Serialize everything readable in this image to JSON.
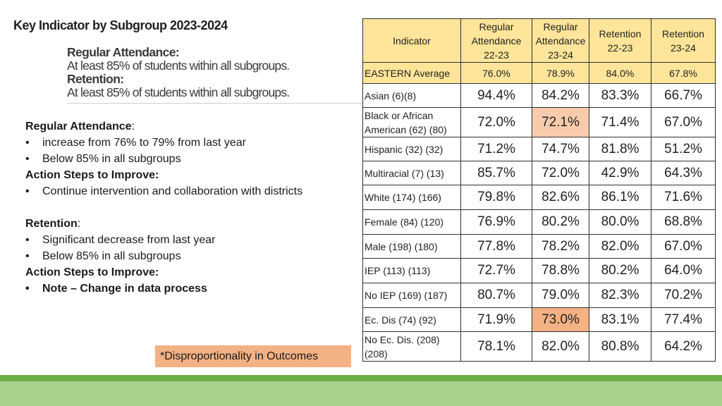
{
  "title": "Key Indicator by Subgroup 2023-2024",
  "criteria": {
    "attendance_heading": "Regular Attendance:",
    "attendance_text": "At least 85% of students within all subgroups.",
    "retention_heading": "Retention:",
    "retention_text": "At least 85% of students within all subgroups."
  },
  "notes": {
    "attendance_label": "Regular Attendance",
    "colon": ":",
    "attendance_bullets": [
      "increase from 76% to 79% from last year",
      "Below 85% in all subgroups"
    ],
    "action_label_1": "Action Steps to Improve:",
    "action_bullets_1": [
      "Continue intervention and collaboration with districts"
    ],
    "retention_label": "Retention",
    "retention_bullets": [
      "Significant decrease from last year",
      "Below 85% in all subgroups"
    ],
    "action_label_2": "Action Steps to Improve:",
    "action_bullets_2": [
      "Note – Change in data process"
    ]
  },
  "disproportionality": "*Disproportionality in Outcomes",
  "table": {
    "headers": {
      "indicator": "Indicator",
      "ra2223": [
        "Regular",
        "Attendance",
        "22-23"
      ],
      "ra2324": [
        "Regular",
        "Attendance",
        "23-24"
      ],
      "ret2223": [
        "Retention",
        "22-23"
      ],
      "ret2324": [
        "Retention",
        "23-24"
      ]
    },
    "average": {
      "label": "EASTERN Average",
      "values": [
        "76.0%",
        "78.9%",
        "84.0%",
        "67.8%"
      ]
    },
    "rows": [
      {
        "label": "Asian (6)(8)",
        "values": [
          "94.4%",
          "84.2%",
          "83.3%",
          "66.7%"
        ]
      },
      {
        "label": "Black or African American (62) (80)",
        "values": [
          "72.0%",
          "72.1%",
          "71.4%",
          "67.0%"
        ]
      },
      {
        "label": "Hispanic (32) (32)",
        "values": [
          "71.2%",
          "74.7%",
          "81.8%",
          "51.2%"
        ]
      },
      {
        "label": "Multiracial (7) (13)",
        "values": [
          "85.7%",
          "72.0%",
          "42.9%",
          "64.3%"
        ]
      },
      {
        "label": "White (174) (166)",
        "values": [
          "79.8%",
          "82.6%",
          "86.1%",
          "71.6%"
        ]
      },
      {
        "label": "Female (84) (120)",
        "values": [
          "76.9%",
          "80.2%",
          "80.0%",
          "68.8%"
        ]
      },
      {
        "label": "Male (198) (180)",
        "values": [
          "77.8%",
          "78.2%",
          "82.0%",
          "67.0%"
        ]
      },
      {
        "label": "IEP (113) (113)",
        "values": [
          "72.7%",
          "78.8%",
          "80.2%",
          "64.0%"
        ]
      },
      {
        "label": "No IEP (169) (187)",
        "values": [
          "80.7%",
          "79.0%",
          "82.3%",
          "70.2%"
        ]
      },
      {
        "label": "Ec. Dis (74)  (92)",
        "values": [
          "71.9%",
          "73.0%",
          "83.1%",
          "77.4%"
        ]
      },
      {
        "label": "No Ec. Dis. (208) (208)",
        "values": [
          "78.1%",
          "82.0%",
          "80.8%",
          "64.2%"
        ]
      }
    ]
  },
  "colors": {
    "header_fill": "#fee599",
    "highlight_orange": "#f4b183",
    "highlight_light": "#f8cbad",
    "footer_dark": "#70ad47",
    "footer_light": "#a9d18e"
  }
}
